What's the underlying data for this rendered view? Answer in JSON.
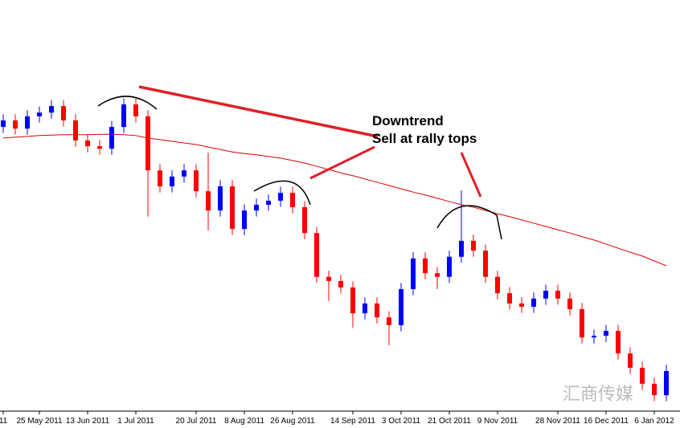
{
  "chart_data": {
    "type": "candlestick",
    "categories": [
      "11",
      null,
      null,
      "25 May 2011",
      null,
      null,
      null,
      "13 Jun 2011",
      null,
      null,
      null,
      "1 Jul 2011",
      null,
      null,
      null,
      null,
      "20 Jul 2011",
      null,
      null,
      null,
      "8 Aug 2011",
      null,
      null,
      null,
      "26 Aug 2011",
      null,
      null,
      null,
      null,
      "14 Sep 2011",
      null,
      null,
      null,
      "3 Oct 2011",
      null,
      null,
      null,
      "21 Oct 2011",
      null,
      null,
      null,
      "9 Nov 2011",
      null,
      null,
      null,
      null,
      "28 Nov 2011",
      null,
      null,
      null,
      "16 Dec 2011",
      null,
      null,
      null,
      "6 Jan 2012",
      null
    ],
    "open": [
      69.0,
      70.6,
      68.6,
      71.6,
      72.5,
      74.1,
      70.6,
      65.7,
      64.3,
      63.7,
      69.0,
      74.5,
      71.6,
      58.4,
      54.5,
      56.9,
      58.4,
      53.3,
      48.6,
      54.5,
      44.1,
      48.6,
      50.0,
      51.0,
      52.9,
      49.4,
      43.1,
      32.4,
      31.4,
      29.8,
      23.5,
      25.9,
      22.5,
      20.6,
      29.4,
      36.9,
      33.3,
      32.4,
      37.3,
      41.2,
      38.8,
      32.4,
      28.4,
      25.9,
      25.1,
      27.1,
      29.0,
      27.1,
      24.5,
      17.6,
      18.0,
      19.2,
      13.7,
      10.2,
      6.3,
      3.5
    ],
    "high": [
      72.1,
      72.1,
      73.1,
      74.0,
      75.6,
      75.6,
      72.1,
      67.2,
      65.8,
      70.5,
      76.0,
      76.0,
      73.1,
      59.9,
      58.4,
      59.9,
      59.9,
      62.7,
      56.0,
      56.0,
      50.1,
      51.5,
      52.5,
      54.4,
      54.4,
      50.9,
      44.6,
      33.9,
      32.9,
      31.3,
      27.4,
      27.4,
      24.0,
      30.9,
      38.4,
      38.4,
      34.8,
      38.8,
      53.5,
      42.7,
      40.3,
      33.9,
      29.9,
      27.4,
      28.6,
      30.5,
      30.5,
      28.6,
      26.0,
      19.5,
      20.7,
      20.7,
      15.2,
      11.7,
      7.8,
      10.9
    ],
    "low": [
      67.5,
      67.1,
      67.1,
      70.1,
      71.0,
      69.1,
      64.2,
      62.8,
      62.2,
      62.2,
      67.5,
      70.1,
      47.1,
      53.0,
      53.0,
      55.4,
      51.8,
      43.7,
      47.1,
      42.6,
      42.6,
      47.1,
      48.5,
      49.5,
      47.9,
      41.6,
      30.9,
      26.5,
      28.3,
      20.0,
      22.0,
      21.0,
      15.7,
      19.1,
      27.9,
      31.8,
      29.4,
      30.9,
      35.8,
      37.3,
      30.9,
      26.9,
      24.4,
      23.6,
      23.6,
      25.6,
      25.6,
      23.0,
      16.1,
      16.1,
      16.5,
      12.2,
      8.7,
      4.8,
      2.0,
      2.0
    ],
    "close": [
      70.6,
      68.6,
      71.6,
      72.5,
      74.1,
      70.6,
      65.7,
      64.3,
      63.7,
      69.0,
      74.5,
      71.6,
      58.4,
      54.5,
      56.9,
      58.4,
      53.3,
      48.6,
      54.5,
      44.1,
      48.6,
      50.0,
      51.0,
      52.9,
      49.4,
      43.1,
      32.4,
      31.4,
      29.8,
      23.5,
      25.9,
      22.5,
      20.6,
      29.4,
      36.9,
      33.3,
      32.4,
      37.3,
      41.2,
      38.8,
      32.4,
      28.4,
      25.9,
      25.1,
      27.1,
      29.0,
      27.1,
      24.5,
      17.6,
      18.0,
      19.2,
      13.7,
      10.2,
      6.3,
      3.5,
      9.4
    ],
    "moving_average": [
      66.3,
      66.5,
      66.7,
      66.9,
      67.0,
      67.1,
      67.1,
      67.1,
      67.2,
      67.2,
      67.1,
      66.9,
      66.3,
      65.9,
      65.5,
      65.1,
      64.7,
      64.1,
      63.5,
      62.9,
      62.5,
      62.2,
      61.8,
      61.4,
      60.8,
      60.2,
      59.4,
      58.6,
      57.8,
      57.1,
      56.3,
      55.5,
      54.7,
      53.9,
      53.1,
      52.4,
      51.6,
      50.8,
      50.0,
      49.4,
      48.6,
      47.8,
      47.1,
      46.3,
      45.5,
      44.7,
      43.9,
      43.1,
      42.2,
      41.4,
      40.4,
      39.4,
      38.4,
      37.5,
      36.3,
      35.1
    ],
    "up_color": "#0000ff",
    "down_color": "#ff0000",
    "ma_color": "#dd0000",
    "ylim": [
      0,
      100
    ],
    "annotations": [
      "Downtrend",
      "Sell at rally tops"
    ],
    "watermark": "汇商传媒"
  }
}
